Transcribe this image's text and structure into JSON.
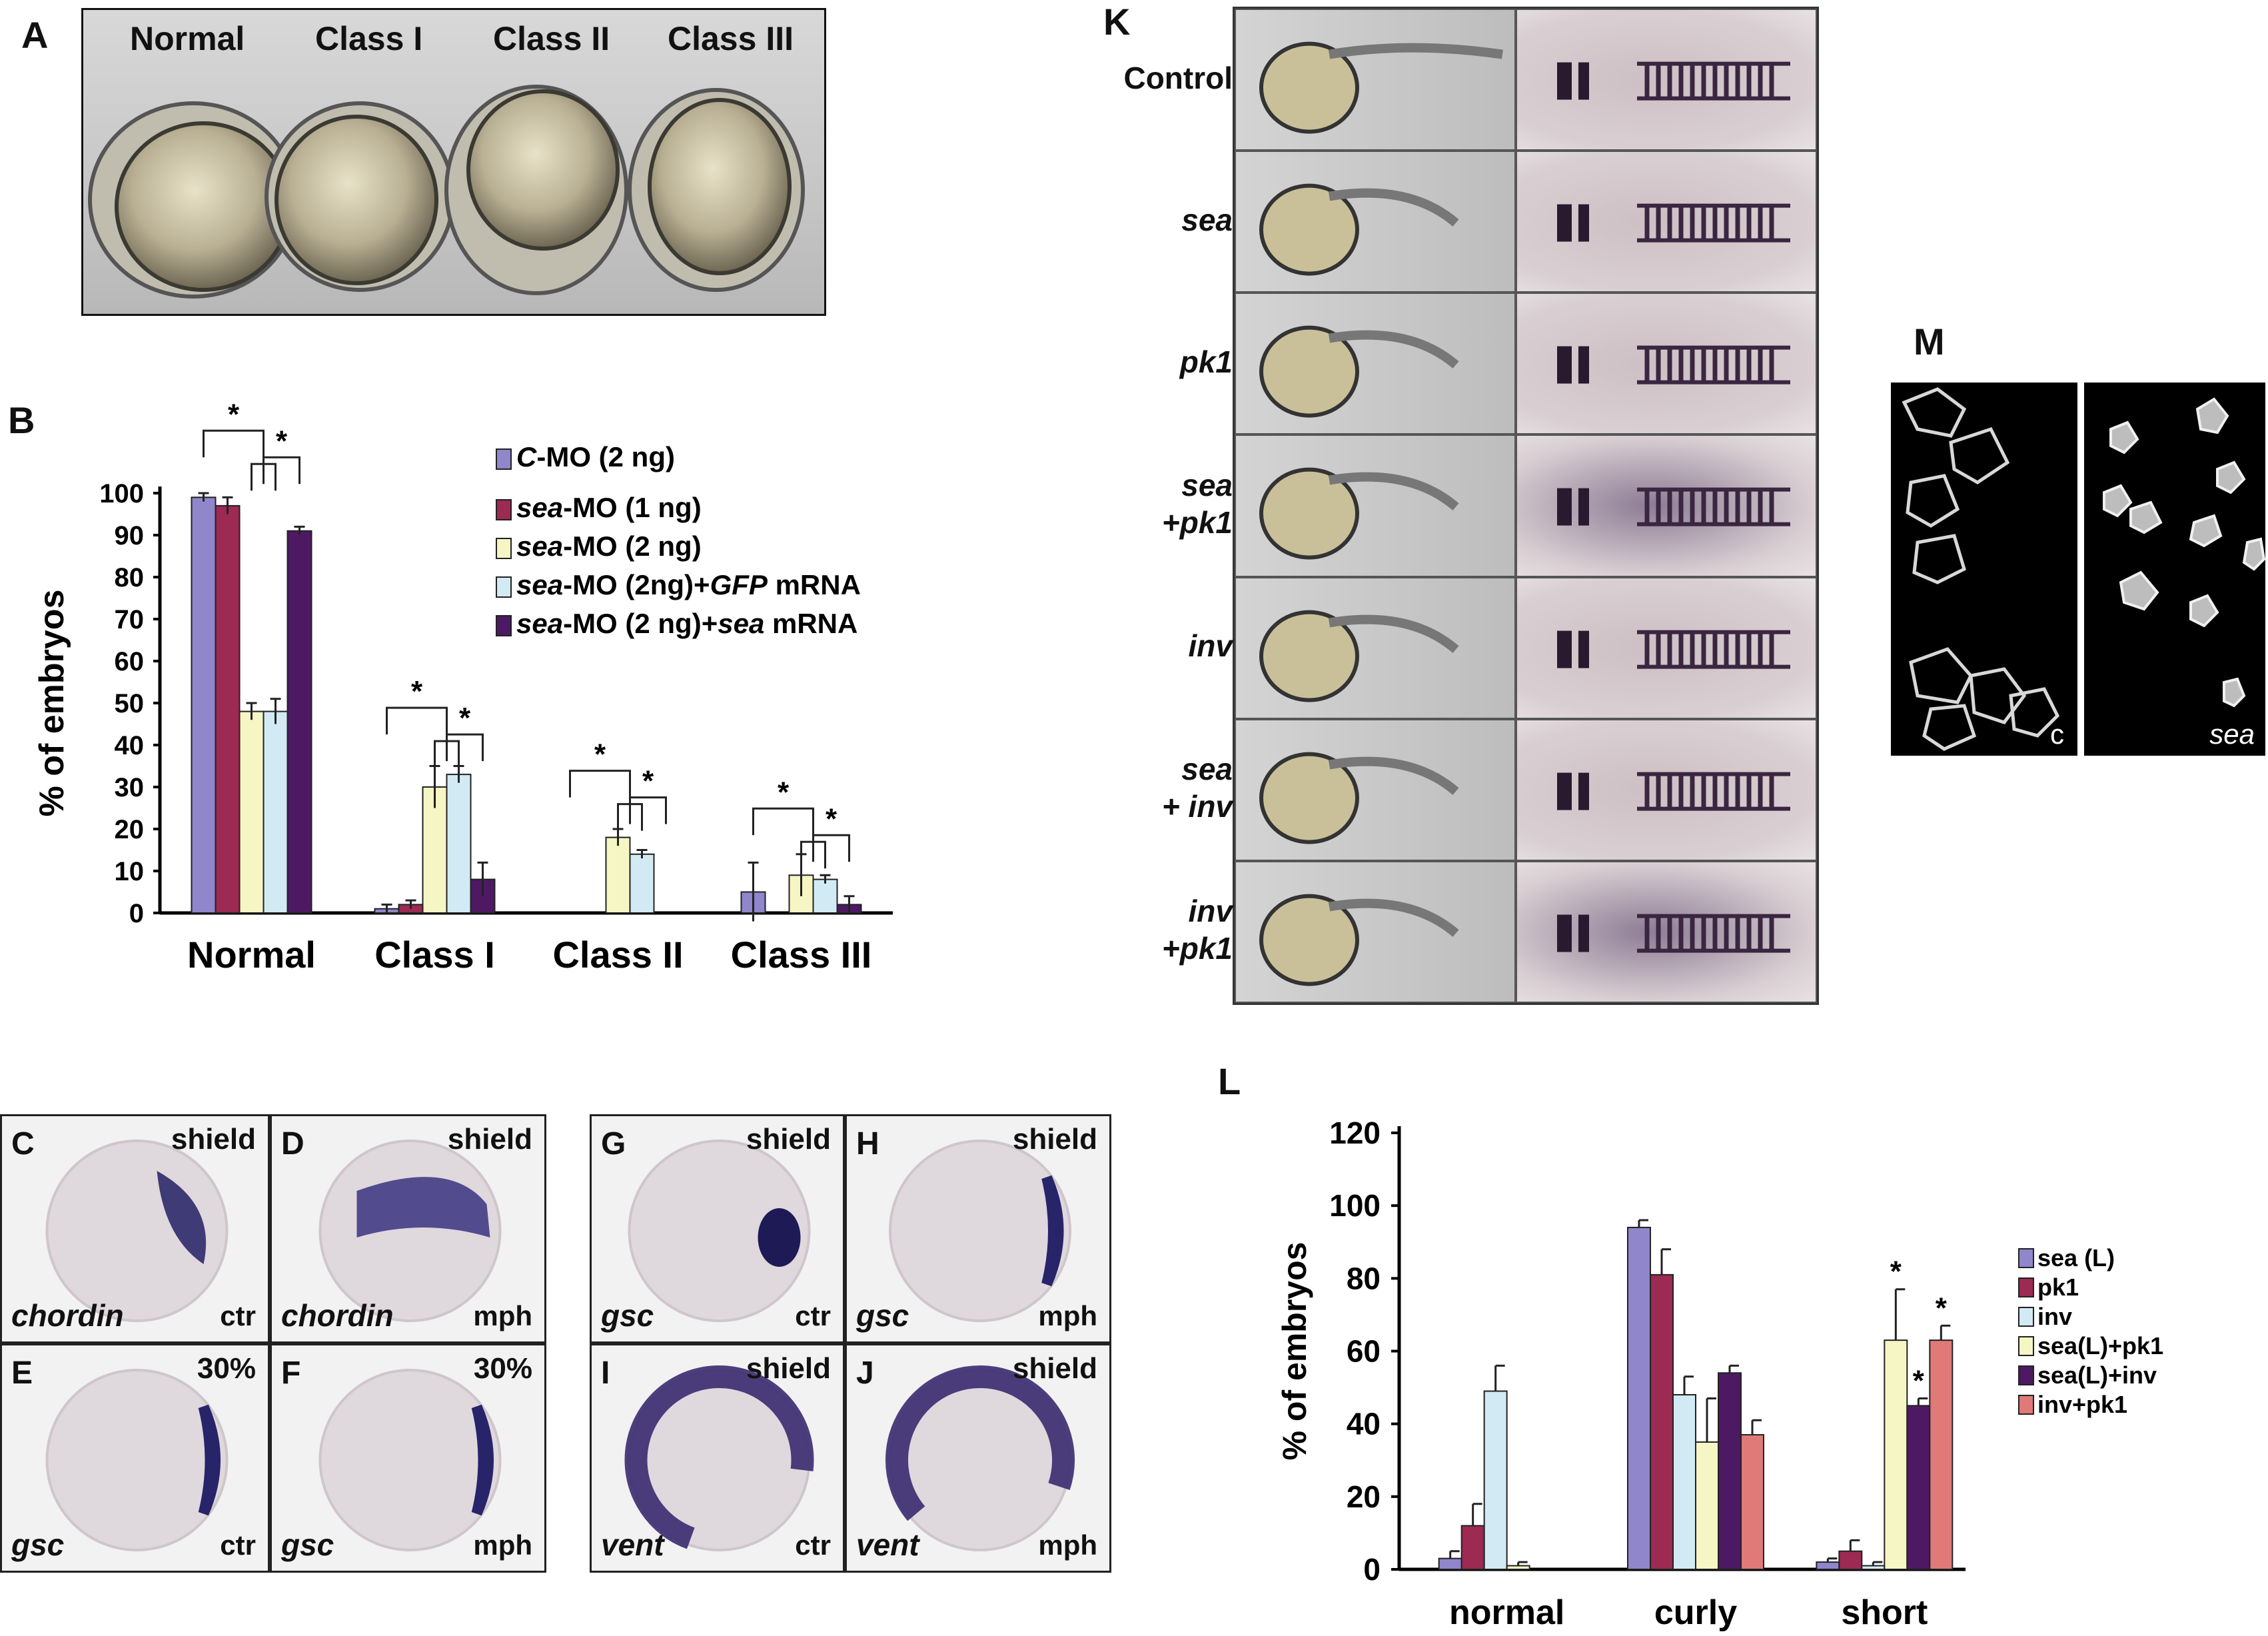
{
  "panelA": {
    "label": "A",
    "classes": [
      "Normal",
      "Class I",
      "Class II",
      "Class III"
    ]
  },
  "panelB": {
    "label": "B",
    "chart_data": {
      "type": "bar",
      "categories": [
        "Normal",
        "Class I",
        "Class II",
        "Class III"
      ],
      "ylabel": "% of embryos",
      "ylim": [
        0,
        100
      ],
      "yticks": [
        0,
        10,
        20,
        30,
        40,
        50,
        60,
        70,
        80,
        90,
        100
      ],
      "legend_position": "top-right",
      "series": [
        {
          "name_parts": [
            "C",
            "-MO (2 ng)"
          ],
          "color": "#8f86cc",
          "values": [
            99,
            1,
            0,
            5
          ],
          "errors": [
            1,
            1,
            0,
            7
          ]
        },
        {
          "name_parts": [
            "sea",
            "-MO (1 ng)"
          ],
          "color": "#9c2a52",
          "values": [
            97,
            2,
            0,
            0
          ],
          "errors": [
            2,
            1,
            0,
            0
          ]
        },
        {
          "name_parts": [
            "sea",
            "-MO (2 ng)"
          ],
          "color": "#f6f5c4",
          "values": [
            48,
            30,
            18,
            9
          ],
          "errors": [
            2,
            5,
            2,
            5
          ]
        },
        {
          "name_parts": [
            "sea",
            "-MO (2ng)+",
            "GFP",
            " mRNA"
          ],
          "color": "#d2eaf3",
          "values": [
            48,
            33,
            14,
            8
          ],
          "errors": [
            3,
            2,
            1,
            1
          ]
        },
        {
          "name_parts": [
            "sea",
            "-MO (2 ng)+",
            "sea",
            " mRNA"
          ],
          "color": "#4e1963",
          "values": [
            91,
            8,
            0,
            2
          ],
          "errors": [
            1,
            4,
            0,
            2
          ]
        }
      ],
      "significance_marker": "*"
    }
  },
  "panelK": {
    "label": "K",
    "rows": [
      "Control",
      "sea",
      "pk1",
      "sea\n+pk1",
      "inv",
      "sea\n+ inv",
      "inv\n+pk1"
    ]
  },
  "panelM": {
    "label": "M",
    "labels": [
      "c",
      "sea"
    ]
  },
  "insitu": [
    {
      "label": "C",
      "stage": "shield",
      "gene": "chordin",
      "cond": "ctr"
    },
    {
      "label": "D",
      "stage": "shield",
      "gene": "chordin",
      "cond": "mph"
    },
    {
      "label": "E",
      "stage": "30%",
      "gene": "gsc",
      "cond": "ctr"
    },
    {
      "label": "F",
      "stage": "30%",
      "gene": "gsc",
      "cond": "mph"
    },
    {
      "label": "G",
      "stage": "shield",
      "gene": "gsc",
      "cond": "ctr"
    },
    {
      "label": "H",
      "stage": "shield",
      "gene": "gsc",
      "cond": "mph"
    },
    {
      "label": "I",
      "stage": "shield",
      "gene": "vent",
      "cond": "ctr"
    },
    {
      "label": "J",
      "stage": "shield",
      "gene": "vent",
      "cond": "mph"
    }
  ],
  "panelL": {
    "label": "L",
    "chart_data": {
      "type": "bar",
      "categories": [
        "normal",
        "curly",
        "short"
      ],
      "ylabel": "% of embryos",
      "ylim": [
        0,
        120
      ],
      "yticks": [
        0,
        20,
        40,
        60,
        80,
        100,
        120
      ],
      "legend_position": "right",
      "series": [
        {
          "name": "sea (L)",
          "color": "#8f86cc",
          "values": [
            3,
            94,
            2
          ],
          "errors": [
            2,
            2,
            1
          ]
        },
        {
          "name": "pk1",
          "color": "#9c2a52",
          "values": [
            12,
            81,
            5
          ],
          "errors": [
            6,
            7,
            3
          ]
        },
        {
          "name": "inv",
          "color": "#d2eaf3",
          "values": [
            49,
            48,
            1
          ],
          "errors": [
            7,
            5,
            1
          ]
        },
        {
          "name": "sea(L)+pk1",
          "color": "#f6f5c4",
          "values": [
            1,
            35,
            63
          ],
          "errors": [
            1,
            12,
            14
          ]
        },
        {
          "name": "sea(L)+inv",
          "color": "#4e1963",
          "values": [
            0,
            54,
            45
          ],
          "errors": [
            0,
            2,
            2
          ]
        },
        {
          "name": "inv+pk1",
          "color": "#e07a78",
          "values": [
            0,
            37,
            63
          ],
          "errors": [
            0,
            4,
            4
          ]
        }
      ],
      "starred": [
        false,
        false,
        true
      ],
      "significance_marker": "*"
    }
  }
}
